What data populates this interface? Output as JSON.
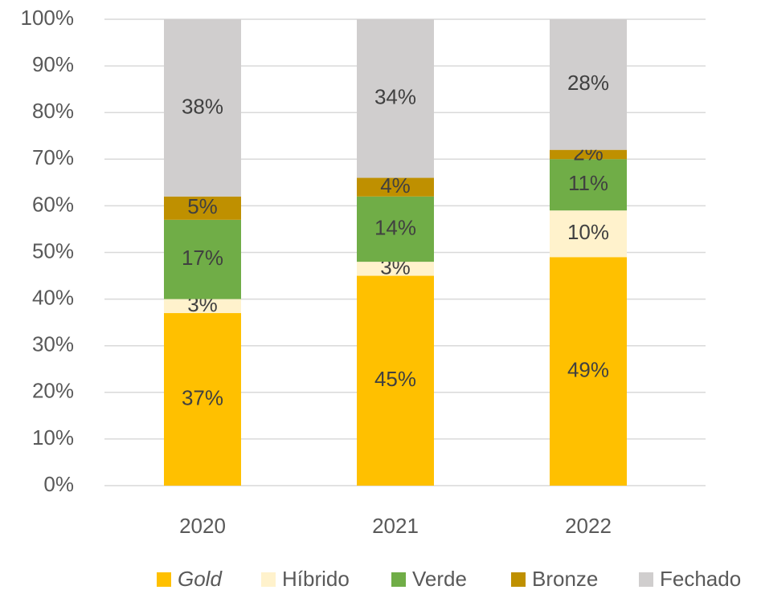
{
  "chart_data": {
    "type": "stacked_bar",
    "categories": [
      "2020",
      "2021",
      "2022"
    ],
    "series": [
      {
        "name": "Gold",
        "color": "#ffc000",
        "values": [
          37,
          45,
          49
        ],
        "value_labels": [
          "37%",
          "45%",
          "49%"
        ]
      },
      {
        "name": "Híbrido",
        "color": "#fff2cc",
        "values": [
          3,
          3,
          10
        ],
        "value_labels": [
          "3%",
          "3%",
          "10%"
        ]
      },
      {
        "name": "Verde",
        "color": "#70ad47",
        "values": [
          17,
          14,
          11
        ],
        "value_labels": [
          "17%",
          "14%",
          "11%"
        ]
      },
      {
        "name": "Bronze",
        "color": "#bf9000",
        "values": [
          5,
          4,
          2
        ],
        "value_labels": [
          "5%",
          "4%",
          "2%"
        ]
      },
      {
        "name": "Fechado",
        "color": "#d0cece",
        "values": [
          38,
          34,
          28
        ],
        "value_labels": [
          "38%",
          "34%",
          "28%"
        ]
      }
    ],
    "ylim": [
      0,
      100
    ],
    "yticks": [
      {
        "value": 0,
        "label": "0%"
      },
      {
        "value": 10,
        "label": "10%"
      },
      {
        "value": 20,
        "label": "20%"
      },
      {
        "value": 30,
        "label": "30%"
      },
      {
        "value": 40,
        "label": "40%"
      },
      {
        "value": 50,
        "label": "50%"
      },
      {
        "value": 60,
        "label": "60%"
      },
      {
        "value": 70,
        "label": "70%"
      },
      {
        "value": 80,
        "label": "80%"
      },
      {
        "value": 90,
        "label": "90%"
      },
      {
        "value": 100,
        "label": "100%"
      }
    ],
    "grid": true,
    "legend": "bottom"
  }
}
